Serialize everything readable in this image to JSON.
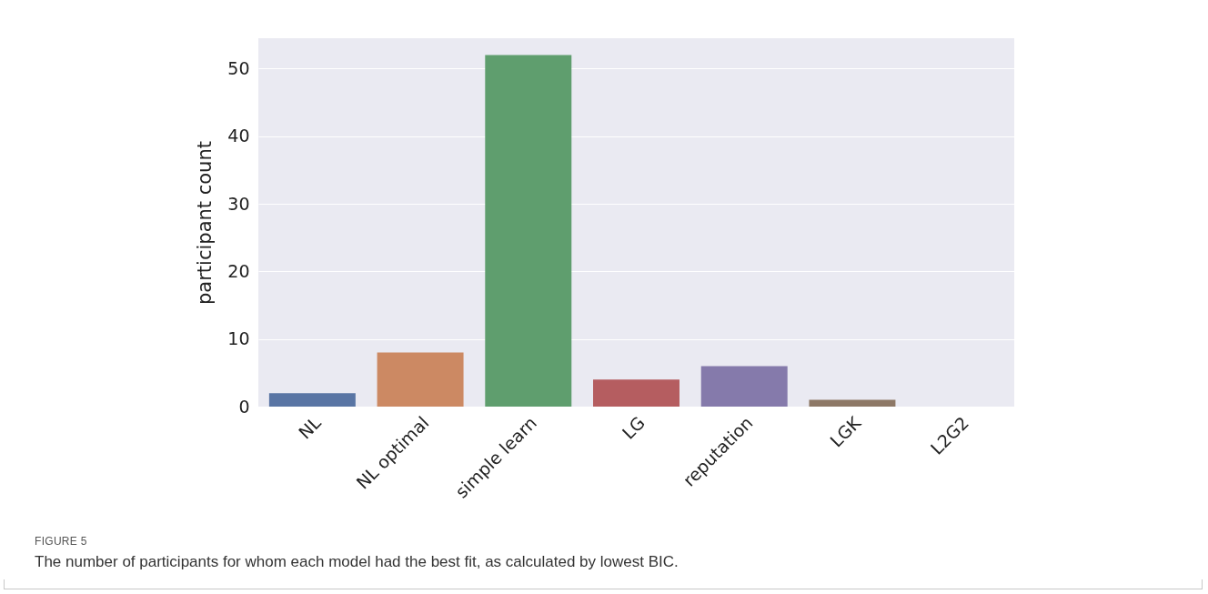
{
  "chart_data": {
    "type": "bar",
    "ylabel": "participant count",
    "categories": [
      "NL",
      "NL optimal",
      "simple learn",
      "LG",
      "reputation",
      "LGK",
      "L2G2"
    ],
    "values": [
      2,
      8,
      52,
      4,
      6,
      1,
      0
    ],
    "colors": [
      "#5975a4",
      "#cc8963",
      "#5f9e6e",
      "#b55d60",
      "#857aab",
      "#8d7866",
      "#d095bf"
    ],
    "ylim": [
      0,
      54.5
    ],
    "yticks": [
      0,
      10,
      20,
      30,
      40,
      50
    ],
    "grid": "y",
    "annotations": [
      "FIGURE 5",
      "The number of participants for whom each model had the best fit, as calculated by lowest BIC."
    ]
  }
}
